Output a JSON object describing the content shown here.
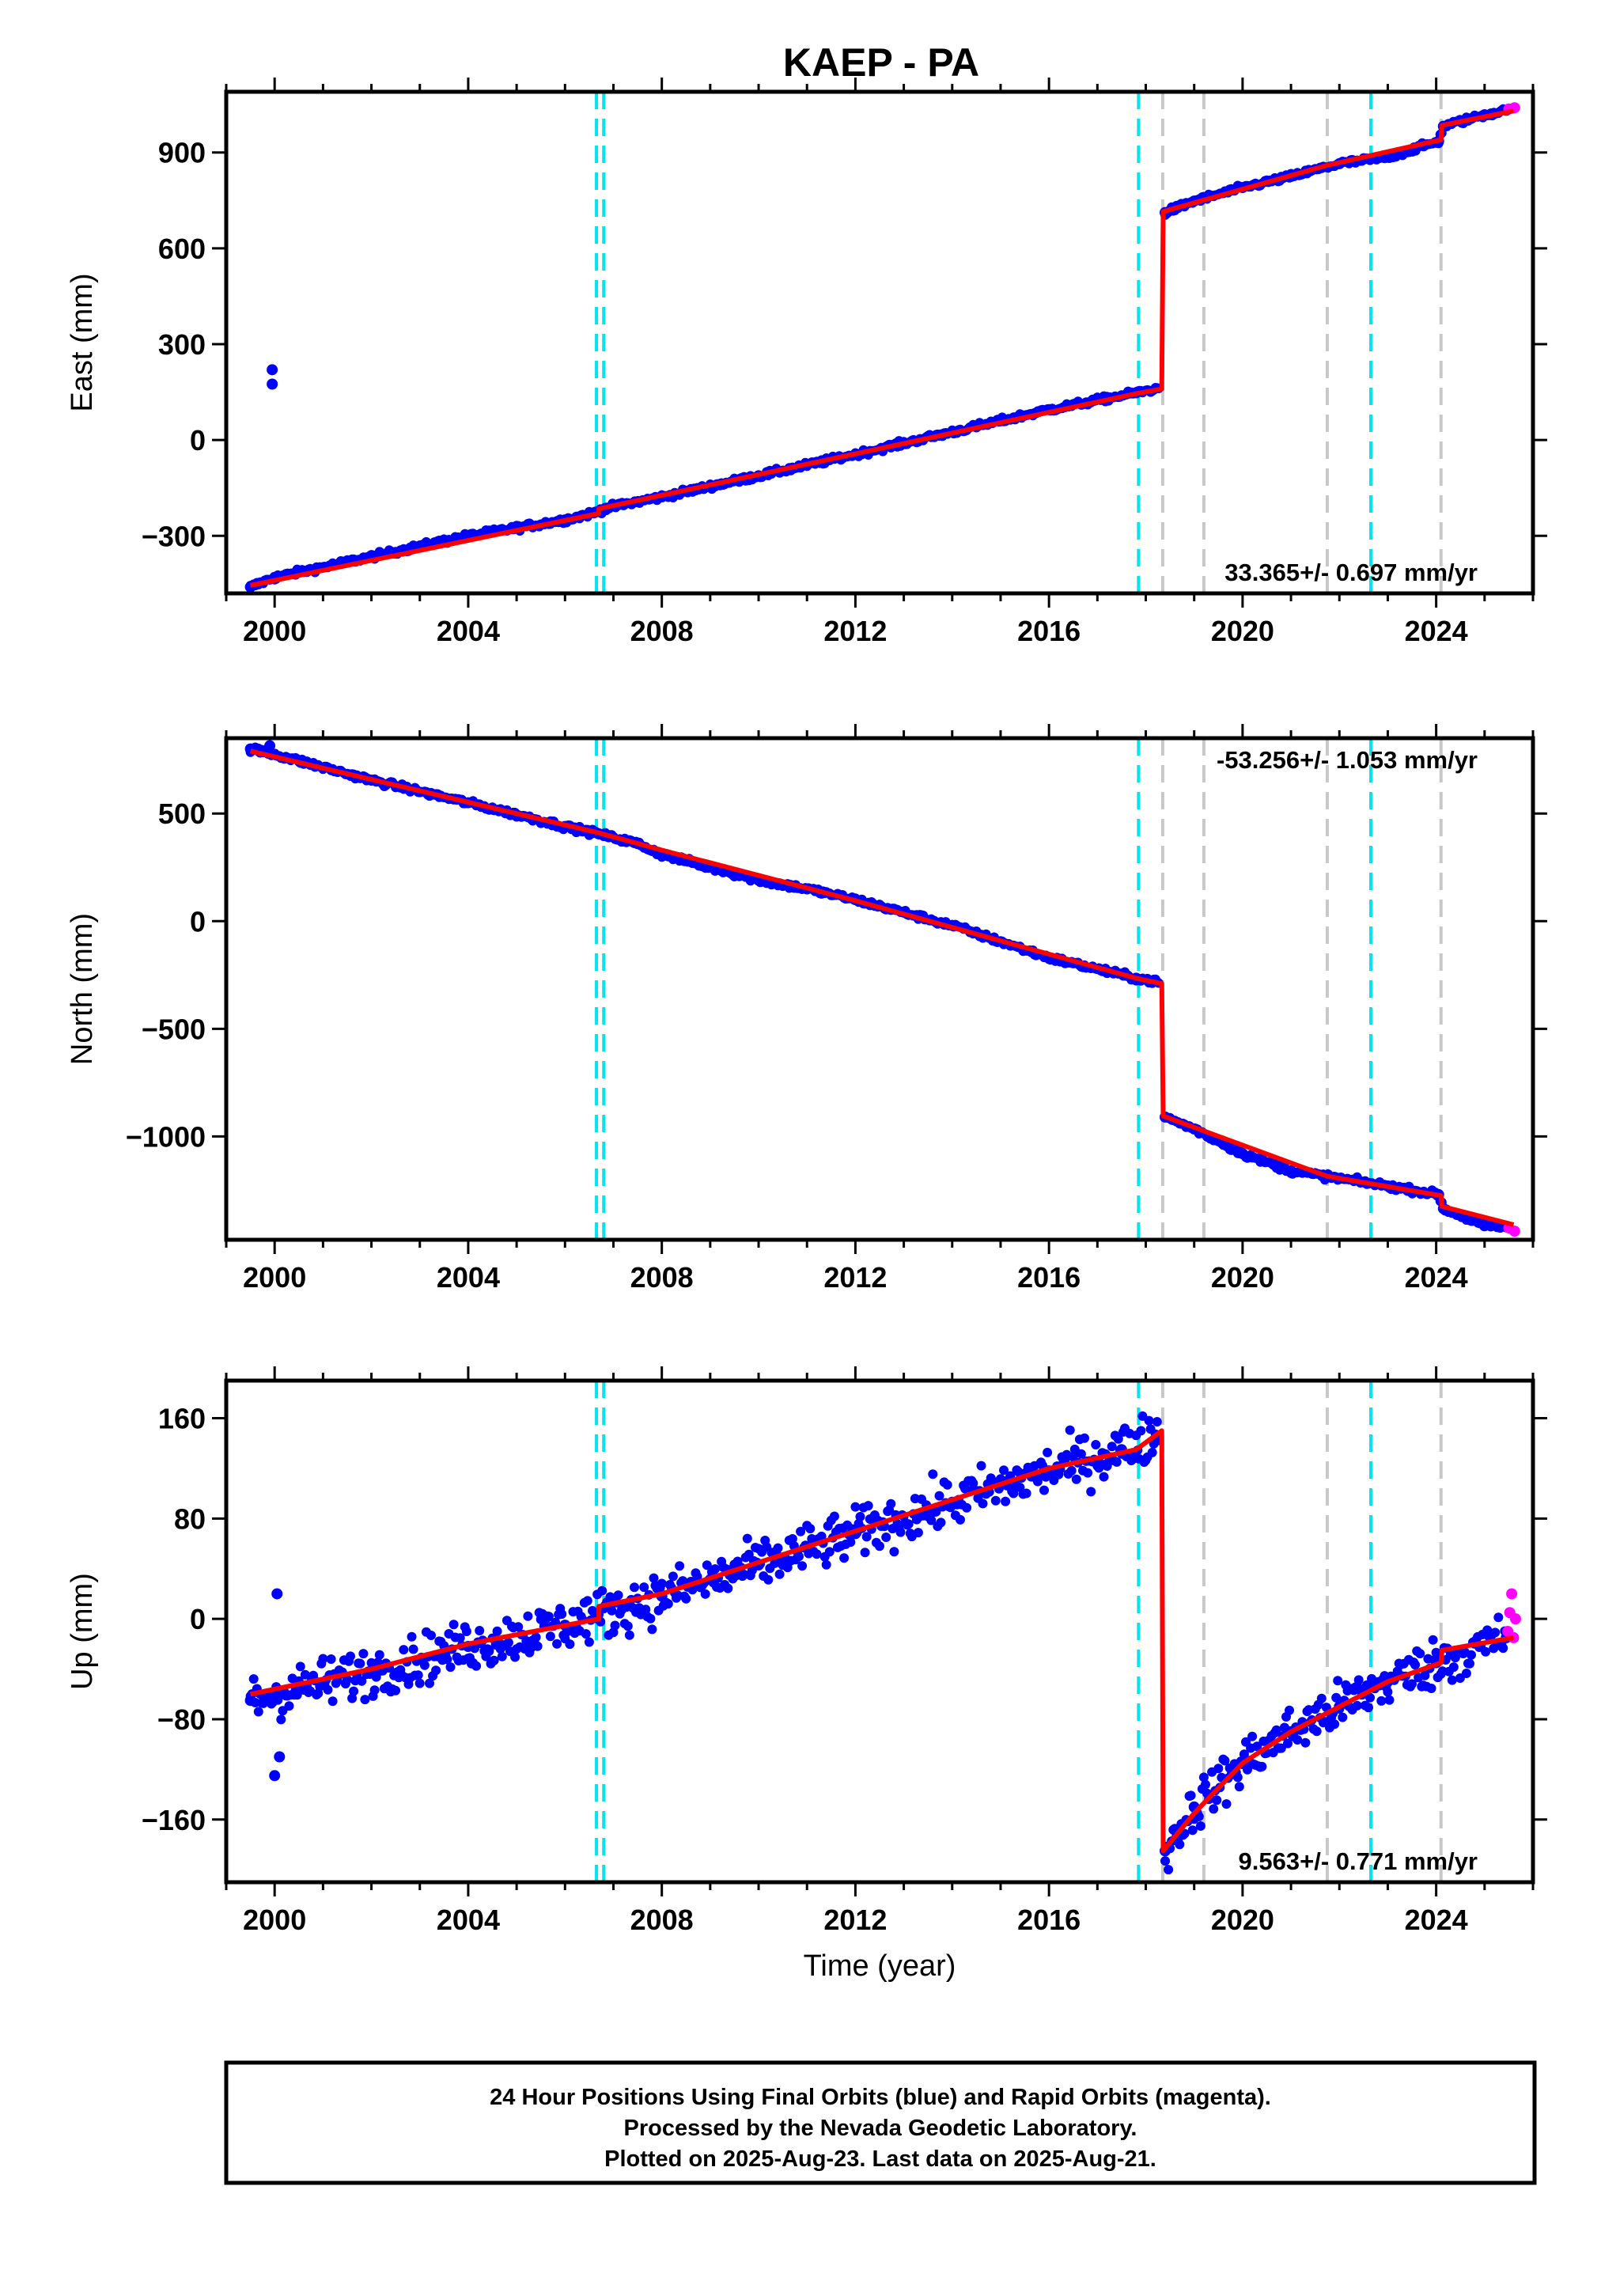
{
  "title": "KAEP - PA",
  "colors": {
    "final": "#0000ff",
    "rapid": "#ff00ff",
    "model": "#ff0000",
    "cyan_line": "#00e5ee",
    "gray_line": "#c8c8c8",
    "frame": "#000000"
  },
  "event_lines": {
    "cyan": [
      2006.65,
      2006.8,
      2017.85,
      2022.65
    ],
    "gray": [
      2018.35,
      2019.2,
      2021.75,
      2024.1
    ]
  },
  "footer": {
    "line1": "24 Hour Positions Using Final Orbits (blue) and Rapid Orbits (magenta).",
    "line2": "Processed by the Nevada Geodetic Laboratory.",
    "line3": "Plotted on 2025-Aug-23. Last data on 2025-Aug-21."
  },
  "chart_data": [
    {
      "type": "scatter",
      "component": "east",
      "ylabel": "East (mm)",
      "xlabel": "",
      "rate_label": "33.365+/- 0.697 mm/yr",
      "xlim": [
        1999.0,
        2026.0
      ],
      "ylim": [
        -480,
        1090
      ],
      "xticks": [
        2000,
        2004,
        2008,
        2012,
        2016,
        2020,
        2024
      ],
      "xtick_labels": [
        "2000",
        "2004",
        "2008",
        "2012",
        "2016",
        "2020",
        "2024"
      ],
      "yticks": [
        -300,
        0,
        300,
        600,
        900
      ],
      "ytick_labels": [
        "−300",
        "0",
        "300",
        "600",
        "900"
      ],
      "grid": false,
      "model": [
        [
          1999.5,
          -455
        ],
        [
          2006.7,
          -230
        ],
        [
          2006.7,
          -215
        ],
        [
          2017.8,
          145
        ],
        [
          2018.33,
          160
        ],
        [
          2018.36,
          715
        ],
        [
          2021.75,
          860
        ],
        [
          2024.1,
          940
        ],
        [
          2024.12,
          985
        ],
        [
          2025.6,
          1030
        ]
      ],
      "final": [
        [
          1999.5,
          -460
        ],
        [
          2000.0,
          -430
        ],
        [
          2002.0,
          -365
        ],
        [
          2004.0,
          -300
        ],
        [
          2006.0,
          -250
        ],
        [
          2006.6,
          -228
        ],
        [
          2006.85,
          -213
        ],
        [
          2008.0,
          -178
        ],
        [
          2010.0,
          -112
        ],
        [
          2012.0,
          -45
        ],
        [
          2014.0,
          25
        ],
        [
          2016.0,
          95
        ],
        [
          2017.8,
          148
        ],
        [
          2018.3,
          162
        ],
        [
          2018.4,
          712
        ],
        [
          2019.0,
          748
        ],
        [
          2020.0,
          790
        ],
        [
          2021.0,
          825
        ],
        [
          2022.0,
          865
        ],
        [
          2023.0,
          885
        ],
        [
          2024.05,
          935
        ],
        [
          2024.15,
          982
        ],
        [
          2025.0,
          1018
        ],
        [
          2025.45,
          1032
        ]
      ],
      "outliers": [
        [
          1999.95,
          175
        ],
        [
          1999.95,
          220
        ]
      ],
      "rapid": [
        [
          2025.5,
          1036
        ],
        [
          2025.62,
          1040
        ]
      ]
    },
    {
      "type": "scatter",
      "component": "north",
      "ylabel": "North (mm)",
      "xlabel": "",
      "rate_label": "-53.256+/- 1.053 mm/yr",
      "xlim": [
        1999.0,
        2026.0
      ],
      "ylim": [
        -1480,
        850
      ],
      "xticks": [
        2000,
        2004,
        2008,
        2012,
        2016,
        2020,
        2024
      ],
      "xtick_labels": [
        "2000",
        "2004",
        "2008",
        "2012",
        "2016",
        "2020",
        "2024"
      ],
      "yticks": [
        -1000,
        -500,
        0,
        500
      ],
      "ytick_labels": [
        "−1000",
        "−500",
        "0",
        "500"
      ],
      "grid": false,
      "model": [
        [
          1999.5,
          790
        ],
        [
          2006.7,
          410
        ],
        [
          2008.0,
          330
        ],
        [
          2012.0,
          95
        ],
        [
          2017.8,
          -265
        ],
        [
          2018.33,
          -290
        ],
        [
          2018.36,
          -905
        ],
        [
          2021.75,
          -1185
        ],
        [
          2024.1,
          -1275
        ],
        [
          2024.12,
          -1325
        ],
        [
          2025.6,
          -1410
        ]
      ],
      "final": [
        [
          1999.5,
          800
        ],
        [
          2000.0,
          775
        ],
        [
          2002.0,
          655
        ],
        [
          2004.0,
          550
        ],
        [
          2006.0,
          440
        ],
        [
          2006.7,
          405
        ],
        [
          2007.5,
          360
        ],
        [
          2008.0,
          310
        ],
        [
          2010.0,
          190
        ],
        [
          2011.0,
          150
        ],
        [
          2012.0,
          100
        ],
        [
          2014.0,
          -20
        ],
        [
          2016.0,
          -170
        ],
        [
          2017.8,
          -265
        ],
        [
          2018.3,
          -285
        ],
        [
          2018.4,
          -910
        ],
        [
          2019.0,
          -965
        ],
        [
          2020.0,
          -1080
        ],
        [
          2021.0,
          -1160
        ],
        [
          2022.0,
          -1195
        ],
        [
          2023.0,
          -1230
        ],
        [
          2024.05,
          -1270
        ],
        [
          2024.15,
          -1335
        ],
        [
          2025.0,
          -1415
        ],
        [
          2025.45,
          -1420
        ]
      ],
      "outliers": [
        [
          1999.9,
          815
        ]
      ],
      "rapid": [
        [
          2025.5,
          -1425
        ],
        [
          2025.62,
          -1440
        ]
      ]
    },
    {
      "type": "scatter",
      "component": "up",
      "ylabel": "Up (mm)",
      "xlabel": "Time (year)",
      "rate_label": "9.563+/- 0.771 mm/yr",
      "xlim": [
        1999.0,
        2026.0
      ],
      "ylim": [
        -210,
        190
      ],
      "xticks": [
        2000,
        2004,
        2008,
        2012,
        2016,
        2020,
        2024
      ],
      "xtick_labels": [
        "2000",
        "2004",
        "2008",
        "2012",
        "2016",
        "2020",
        "2024"
      ],
      "yticks": [
        -160,
        -80,
        0,
        80,
        160
      ],
      "ytick_labels": [
        "−160",
        "−80",
        "0",
        "80",
        "160"
      ],
      "grid": false,
      "noise": 14,
      "model": [
        [
          1999.5,
          -60
        ],
        [
          2002.0,
          -40
        ],
        [
          2004.0,
          -20
        ],
        [
          2006.7,
          0
        ],
        [
          2006.7,
          10
        ],
        [
          2008.0,
          20
        ],
        [
          2010.0,
          45
        ],
        [
          2012.0,
          70
        ],
        [
          2014.0,
          95
        ],
        [
          2016.0,
          120
        ],
        [
          2017.8,
          135
        ],
        [
          2018.33,
          150
        ],
        [
          2018.36,
          -185
        ],
        [
          2019.0,
          -155
        ],
        [
          2020.0,
          -115
        ],
        [
          2021.0,
          -90
        ],
        [
          2022.0,
          -70
        ],
        [
          2023.0,
          -50
        ],
        [
          2024.1,
          -35
        ],
        [
          2024.12,
          -25
        ],
        [
          2025.6,
          -15
        ]
      ],
      "final": [
        [
          1999.5,
          -65
        ],
        [
          2000.0,
          -60
        ],
        [
          2002.0,
          -42
        ],
        [
          2004.0,
          -22
        ],
        [
          2006.0,
          -5
        ],
        [
          2008.0,
          18
        ],
        [
          2010.0,
          43
        ],
        [
          2012.0,
          68
        ],
        [
          2014.0,
          93
        ],
        [
          2016.0,
          118
        ],
        [
          2017.5,
          135
        ],
        [
          2018.3,
          148
        ],
        [
          2018.4,
          -185
        ],
        [
          2019.0,
          -150
        ],
        [
          2020.0,
          -115
        ],
        [
          2021.0,
          -90
        ],
        [
          2022.0,
          -70
        ],
        [
          2023.0,
          -50
        ],
        [
          2024.0,
          -35
        ],
        [
          2025.45,
          -15
        ]
      ],
      "outliers": [
        [
          2000.0,
          -125
        ],
        [
          2000.1,
          -110
        ],
        [
          2000.05,
          20
        ]
      ],
      "rapid": [
        [
          2025.48,
          -10
        ],
        [
          2025.52,
          5
        ],
        [
          2025.56,
          20
        ],
        [
          2025.6,
          -15
        ],
        [
          2025.64,
          0
        ]
      ]
    }
  ]
}
